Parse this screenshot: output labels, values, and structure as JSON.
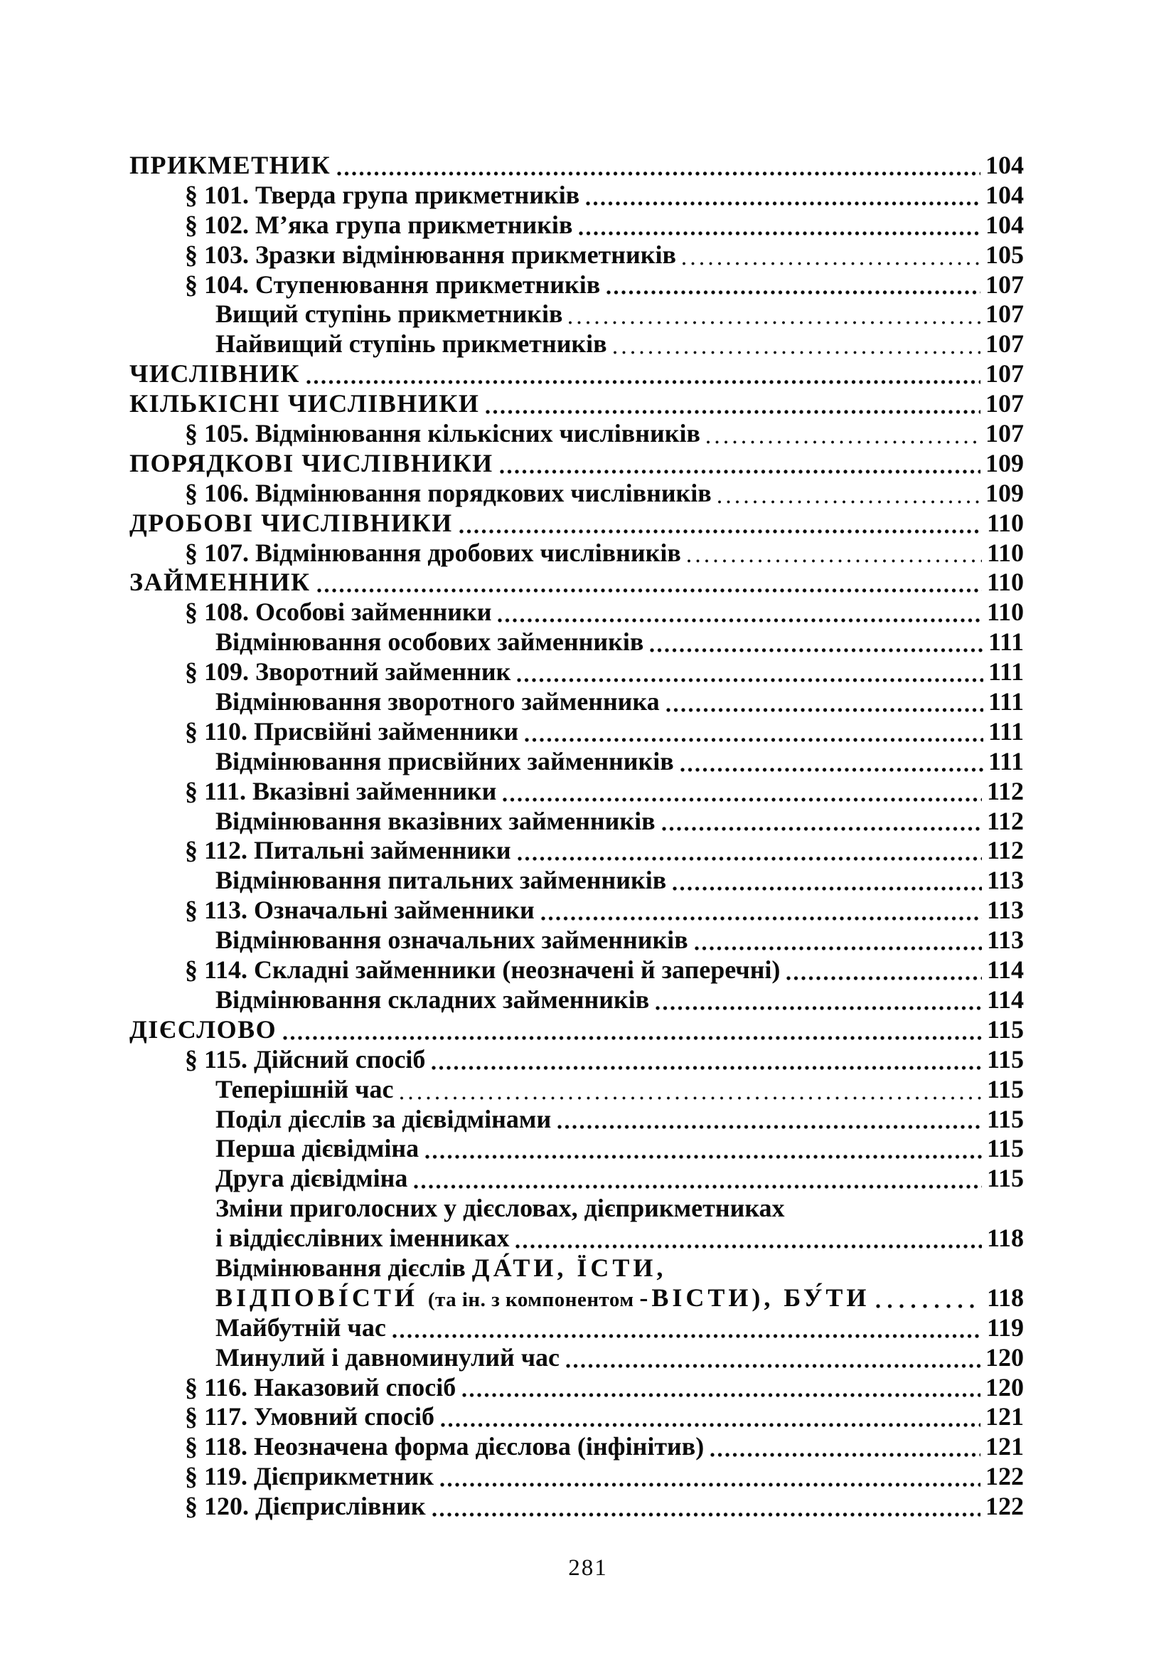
{
  "page": {
    "footer_page_number": "281",
    "ink_color": "#0b0b0b",
    "paper_color": "#ffffff"
  },
  "toc": {
    "rows": [
      {
        "level": 0,
        "text": "ПРИКМЕТНИК",
        "page": "104",
        "leader": "dots"
      },
      {
        "level": 1,
        "text": "§ 101. Тверда група прикметників",
        "page": "104",
        "leader": "dots"
      },
      {
        "level": 1,
        "text": "§ 102. М’яка група прикметників",
        "page": "104",
        "leader": "dots"
      },
      {
        "level": 1,
        "text": "§ 103. Зразки відмінювання прикметників",
        "page": "105",
        "leader": "fine"
      },
      {
        "level": 1,
        "text": "§ 104. Ступенювання прикметників",
        "page": "107",
        "leader": "dots"
      },
      {
        "level": 2,
        "text": "Вищий ступінь прикметників",
        "page": "107",
        "leader": "fine"
      },
      {
        "level": 2,
        "text": "Найвищий ступінь прикметників",
        "page": "107",
        "leader": "fine"
      },
      {
        "level": 0,
        "text": "ЧИСЛІВНИК",
        "page": "107",
        "leader": "dots"
      },
      {
        "level": 0,
        "text": "КІЛЬКІСНІ ЧИСЛІВНИКИ",
        "page": "107",
        "leader": "dots"
      },
      {
        "level": 1,
        "text": "§ 105. Відмінювання кількісних числівників",
        "page": "107",
        "leader": "fine"
      },
      {
        "level": 0,
        "text": "ПОРЯДКОВІ ЧИСЛІВНИКИ",
        "page": "109",
        "leader": "dots"
      },
      {
        "level": 1,
        "text": "§ 106. Відмінювання порядкових числівників",
        "page": "109",
        "leader": "fine"
      },
      {
        "level": 0,
        "text": "ДРОБОВІ ЧИСЛІВНИКИ",
        "page": "110",
        "leader": "dots"
      },
      {
        "level": 1,
        "text": "§ 107. Відмінювання дробових числівників",
        "page": "110",
        "leader": "fine"
      },
      {
        "level": 0,
        "text": "ЗАЙМЕННИК",
        "page": "110",
        "leader": "dots"
      },
      {
        "level": 1,
        "text": "§ 108. Особові займенники",
        "page": "110",
        "leader": "dots"
      },
      {
        "level": 2,
        "text": "Відмінювання особових займенників",
        "page": "111",
        "leader": "dots"
      },
      {
        "level": 1,
        "text": "§ 109. Зворотний займенник",
        "page": "111",
        "leader": "dots"
      },
      {
        "level": 2,
        "text": "Відмінювання зворотного займенника",
        "page": "111",
        "leader": "dots"
      },
      {
        "level": 1,
        "text": "§ 110. Присвійні займенники",
        "page": "111",
        "leader": "dots"
      },
      {
        "level": 2,
        "text": "Відмінювання присвійних займенників",
        "page": "111",
        "leader": "dots"
      },
      {
        "level": 1,
        "text": "§ 111. Вказівні займенники",
        "page": "112",
        "leader": "dots"
      },
      {
        "level": 2,
        "text": "Відмінювання вказівних займенників",
        "page": "112",
        "leader": "dots"
      },
      {
        "level": 1,
        "text": "§ 112. Питальні займенники",
        "page": "112",
        "leader": "dots"
      },
      {
        "level": 2,
        "text": "Відмінювання питальних займенників",
        "page": "113",
        "leader": "dots"
      },
      {
        "level": 1,
        "text": "§ 113. Означальні займенники",
        "page": "113",
        "leader": "dots"
      },
      {
        "level": 2,
        "text": "Відмінювання означальних займенників",
        "page": "113",
        "leader": "dots"
      },
      {
        "level": 1,
        "text": "§ 114. Складні займенники (неозначені й заперечні)",
        "page": "114",
        "leader": "dots"
      },
      {
        "level": 2,
        "text": "Відмінювання складних займенників",
        "page": "114",
        "leader": "dots"
      },
      {
        "level": 0,
        "text": "ДІЄСЛОВО",
        "page": "115",
        "leader": "dots"
      },
      {
        "level": 1,
        "text": "§ 115. Дійсний спосіб",
        "page": "115",
        "leader": "dots"
      },
      {
        "level": 2,
        "text": "Теперішній час",
        "page": "115",
        "leader": "fine"
      },
      {
        "level": 2,
        "text": "Поділ дієслів за дієвідмінами",
        "page": "115",
        "leader": "dots"
      },
      {
        "level": 2,
        "text": "Перша дієвідміна",
        "page": "115",
        "leader": "dots"
      },
      {
        "level": 2,
        "text": "Друга дієвідміна",
        "page": "115",
        "leader": "dots"
      },
      {
        "level": 2,
        "text": "Зміни приголосних у дієсловах, дієприкметниках",
        "page": "",
        "leader": "none"
      },
      {
        "level": 2,
        "text": "і віддієслівних іменниках",
        "page": "118",
        "leader": "dots"
      },
      {
        "level": 2,
        "segments": [
          {
            "t": "Відмінювання дієслів "
          },
          {
            "t": "ДА́ТИ, ЇСТИ,",
            "cls": "sp"
          }
        ],
        "page": "",
        "leader": "none"
      },
      {
        "level": 2,
        "segments": [
          {
            "t": "ВІДПОВІ́СТИ́ ",
            "cls": "sp"
          },
          {
            "t": "(та ін. з компонентом ",
            "cls": "sm"
          },
          {
            "t": "-ВІСТИ), ",
            "cls": "sp"
          },
          {
            "t": "БУ́ТИ",
            "cls": "sp"
          }
        ],
        "page": "118",
        "leader": "sparse"
      },
      {
        "level": 2,
        "text": "Майбутній час",
        "page": "119",
        "leader": "dots"
      },
      {
        "level": 2,
        "text": "Минулий і давноминулий час",
        "page": "120",
        "leader": "dots"
      },
      {
        "level": 1,
        "text": "§ 116. Наказовий спосіб",
        "page": "120",
        "leader": "dots"
      },
      {
        "level": 1,
        "text": "§ 117. Умовний спосіб",
        "page": "121",
        "leader": "dots"
      },
      {
        "level": 1,
        "text": "§ 118. Неозначена форма дієслова (інфінітив)",
        "page": "121",
        "leader": "dots"
      },
      {
        "level": 1,
        "text": "§ 119. Дієприкметник",
        "page": "122",
        "leader": "dots"
      },
      {
        "level": 1,
        "text": "§ 120. Дієприслівник",
        "page": "122",
        "leader": "dots"
      }
    ]
  }
}
